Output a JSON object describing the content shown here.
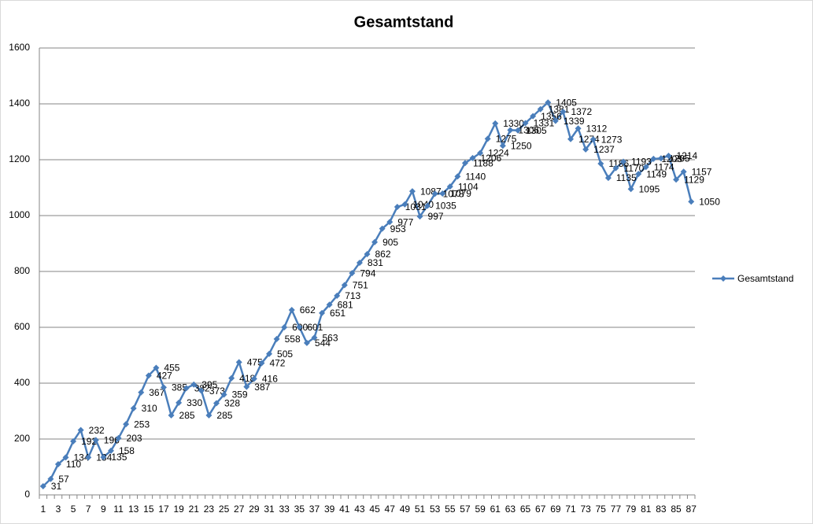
{
  "chart_data": {
    "type": "line",
    "title": "Gesamtstand",
    "categories": [
      "1",
      null,
      "3",
      null,
      "5",
      null,
      "7",
      null,
      "9",
      null,
      "11",
      null,
      "13",
      null,
      "15",
      null,
      "17",
      null,
      "19",
      null,
      "21",
      null,
      "23",
      null,
      "25",
      null,
      "27",
      null,
      "29",
      null,
      "31",
      null,
      "33",
      null,
      "35",
      null,
      "37",
      null,
      "39",
      null,
      "41",
      null,
      "43",
      null,
      "45",
      null,
      "47",
      null,
      "49",
      null,
      "51",
      null,
      "53",
      null,
      "55",
      null,
      "57",
      null,
      "59",
      null,
      "61",
      null,
      "63",
      null,
      "65",
      null,
      "67",
      null,
      "69",
      null,
      "71",
      null,
      "73",
      null,
      "75",
      null,
      "77",
      null,
      "79",
      null,
      "81",
      null,
      "83",
      null,
      "85",
      null,
      "87"
    ],
    "series": [
      {
        "name": "Gesamtstand",
        "color": "#4a7ebb",
        "values": [
          31,
          57,
          110,
          134,
          192,
          232,
          134,
          196,
          135,
          158,
          203,
          253,
          310,
          367,
          427,
          455,
          385,
          285,
          330,
          382,
          395,
          373,
          285,
          328,
          359,
          418,
          475,
          387,
          416,
          472,
          505,
          558,
          600,
          662,
          601,
          544,
          563,
          651,
          681,
          713,
          751,
          794,
          831,
          862,
          905,
          953,
          977,
          1031,
          1040,
          1087,
          997,
          1035,
          1078,
          1079,
          1104,
          1140,
          1188,
          1206,
          1224,
          1275,
          1330,
          1250,
          1306,
          1305,
          1331,
          1356,
          1381,
          1405,
          1339,
          1372,
          1274,
          1312,
          1237,
          1273,
          1186,
          1135,
          1170,
          1193,
          1095,
          1149,
          1174,
          1203,
          1205,
          1214,
          1129,
          1157,
          1050
        ]
      }
    ],
    "ylim": [
      0,
      1600
    ],
    "yticks": [
      0,
      200,
      400,
      600,
      800,
      1000,
      1200,
      1400,
      1600
    ],
    "grid": true,
    "legend": "right"
  }
}
